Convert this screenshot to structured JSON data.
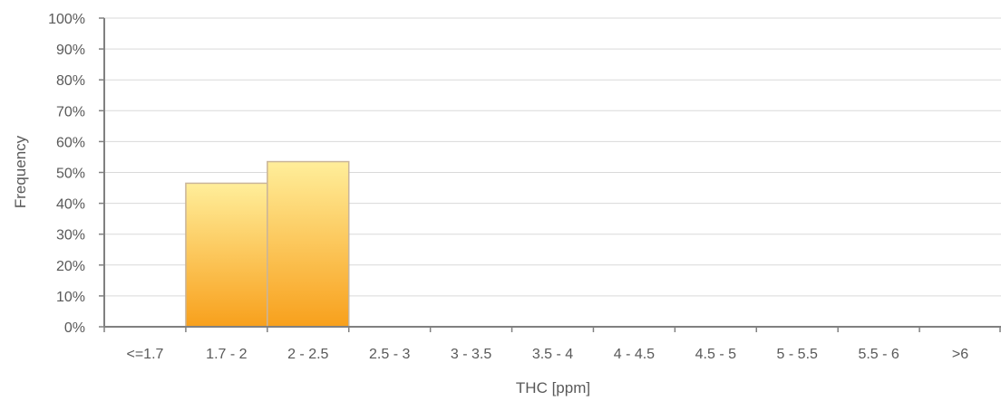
{
  "chart_data": {
    "type": "bar",
    "categories": [
      "<=1.7",
      "1.7 - 2",
      "2 - 2.5",
      "2.5 - 3",
      "3 - 3.5",
      "3.5 - 4",
      "4 - 4.5",
      "4.5 - 5",
      "5 - 5.5",
      "5.5 - 6",
      ">6"
    ],
    "values": [
      0,
      46.5,
      53.5,
      0,
      0,
      0,
      0,
      0,
      0,
      0,
      0
    ],
    "y_tick_labels": [
      "0%",
      "10%",
      "20%",
      "30%",
      "40%",
      "50%",
      "60%",
      "70%",
      "80%",
      "90%",
      "100%"
    ],
    "xlabel": "THC [ppm]",
    "ylabel": "Frequency",
    "ylim": [
      0,
      100
    ],
    "grid": true,
    "legend": "none",
    "colors": {
      "bar_top": "#FFEE9A",
      "bar_bottom": "#F8A01C",
      "bar_stroke": "#C9B59A",
      "grid": "#D9D9D9",
      "axis": "#808080"
    }
  }
}
